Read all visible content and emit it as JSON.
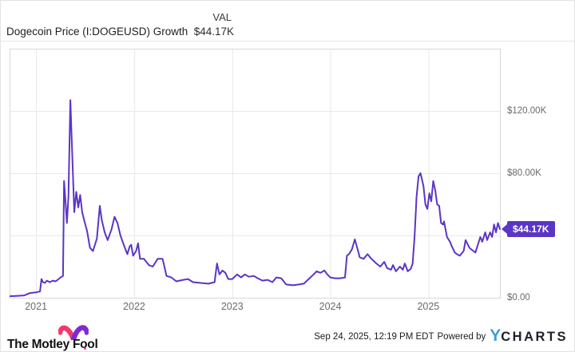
{
  "header": {
    "title": "Dogecoin Price (I:DOGEUSD) Growth",
    "value_column_label": "VAL",
    "current_value": "$44.17K"
  },
  "chart_data": {
    "type": "line",
    "title": "Dogecoin Price (I:DOGEUSD) Growth",
    "x_range": [
      2020.73,
      2025.73
    ],
    "y_range": [
      0,
      160
    ],
    "x_gridlines": [
      {
        "value": 2021,
        "label": "2021"
      },
      {
        "value": 2022,
        "label": "2022"
      },
      {
        "value": 2023,
        "label": "2023"
      },
      {
        "value": 2024,
        "label": "2024"
      },
      {
        "value": 2025,
        "label": "2025"
      }
    ],
    "y_gridlines": [
      0,
      40,
      80,
      120
    ],
    "y_axis_labels": [
      {
        "value": 120,
        "label": "$120.00K"
      },
      {
        "value": 80,
        "label": "$80.00K"
      },
      {
        "value": 0,
        "label": "$0.00"
      }
    ],
    "badge": {
      "label": "$44.17K",
      "value": 44.17,
      "color": "#5b35c5"
    },
    "grid_color": "#e9e9e9",
    "border_color": "#d8d8d8",
    "legend": "none",
    "series": [
      {
        "name": "Dogecoin Price (I:DOGEUSD) Growth",
        "color": "#5b35c5",
        "units": "thousand USD",
        "points": [
          [
            2020.73,
            1
          ],
          [
            2020.8,
            1.2
          ],
          [
            2020.88,
            1.5
          ],
          [
            2020.94,
            3
          ],
          [
            2021.0,
            3.5
          ],
          [
            2021.04,
            4
          ],
          [
            2021.055,
            12
          ],
          [
            2021.07,
            10
          ],
          [
            2021.09,
            9.5
          ],
          [
            2021.11,
            11
          ],
          [
            2021.14,
            10
          ],
          [
            2021.17,
            11
          ],
          [
            2021.2,
            10.5
          ],
          [
            2021.23,
            12
          ],
          [
            2021.26,
            13.5
          ],
          [
            2021.275,
            14
          ],
          [
            2021.285,
            75
          ],
          [
            2021.3,
            62
          ],
          [
            2021.315,
            48
          ],
          [
            2021.33,
            65
          ],
          [
            2021.35,
            127
          ],
          [
            2021.37,
            90
          ],
          [
            2021.39,
            55
          ],
          [
            2021.41,
            68
          ],
          [
            2021.43,
            58
          ],
          [
            2021.45,
            66
          ],
          [
            2021.47,
            55
          ],
          [
            2021.49,
            50
          ],
          [
            2021.52,
            43
          ],
          [
            2021.55,
            32
          ],
          [
            2021.58,
            30
          ],
          [
            2021.62,
            38
          ],
          [
            2021.65,
            59
          ],
          [
            2021.67,
            50
          ],
          [
            2021.7,
            42
          ],
          [
            2021.73,
            37
          ],
          [
            2021.77,
            44
          ],
          [
            2021.8,
            52
          ],
          [
            2021.83,
            48
          ],
          [
            2021.86,
            40
          ],
          [
            2021.9,
            33
          ],
          [
            2021.93,
            28
          ],
          [
            2021.955,
            33
          ],
          [
            2021.97,
            34
          ],
          [
            2021.99,
            27
          ],
          [
            2022.02,
            30
          ],
          [
            2022.04,
            35
          ],
          [
            2022.06,
            25
          ],
          [
            2022.1,
            25
          ],
          [
            2022.15,
            21
          ],
          [
            2022.19,
            20
          ],
          [
            2022.24,
            25
          ],
          [
            2022.29,
            25
          ],
          [
            2022.33,
            14
          ],
          [
            2022.38,
            13
          ],
          [
            2022.43,
            10.5
          ],
          [
            2022.5,
            11.5
          ],
          [
            2022.55,
            12
          ],
          [
            2022.6,
            10
          ],
          [
            2022.68,
            9.5
          ],
          [
            2022.76,
            9
          ],
          [
            2022.82,
            10
          ],
          [
            2022.845,
            22
          ],
          [
            2022.87,
            15
          ],
          [
            2022.9,
            17.5
          ],
          [
            2022.93,
            16
          ],
          [
            2022.96,
            12
          ],
          [
            2023.0,
            12
          ],
          [
            2023.05,
            15
          ],
          [
            2023.09,
            13
          ],
          [
            2023.13,
            15
          ],
          [
            2023.17,
            13.5
          ],
          [
            2023.22,
            14
          ],
          [
            2023.26,
            12.5
          ],
          [
            2023.31,
            11
          ],
          [
            2023.36,
            11.5
          ],
          [
            2023.41,
            10
          ],
          [
            2023.45,
            13
          ],
          [
            2023.5,
            12.5
          ],
          [
            2023.55,
            8.5
          ],
          [
            2023.62,
            8
          ],
          [
            2023.68,
            8.5
          ],
          [
            2023.73,
            9
          ],
          [
            2023.78,
            12
          ],
          [
            2023.83,
            15
          ],
          [
            2023.86,
            17
          ],
          [
            2023.9,
            16
          ],
          [
            2023.94,
            17.5
          ],
          [
            2023.97,
            15
          ],
          [
            2024.0,
            13
          ],
          [
            2024.05,
            12.5
          ],
          [
            2024.1,
            12.5
          ],
          [
            2024.15,
            13
          ],
          [
            2024.17,
            27
          ],
          [
            2024.19,
            28
          ],
          [
            2024.22,
            31
          ],
          [
            2024.25,
            37.5
          ],
          [
            2024.28,
            31
          ],
          [
            2024.3,
            26
          ],
          [
            2024.34,
            25
          ],
          [
            2024.38,
            28
          ],
          [
            2024.42,
            25
          ],
          [
            2024.47,
            22
          ],
          [
            2024.51,
            20
          ],
          [
            2024.55,
            23
          ],
          [
            2024.58,
            19
          ],
          [
            2024.62,
            18
          ],
          [
            2024.64,
            21
          ],
          [
            2024.67,
            17
          ],
          [
            2024.71,
            20
          ],
          [
            2024.74,
            18
          ],
          [
            2024.76,
            22
          ],
          [
            2024.79,
            17
          ],
          [
            2024.82,
            18.5
          ],
          [
            2024.84,
            22
          ],
          [
            2024.86,
            40
          ],
          [
            2024.88,
            65
          ],
          [
            2024.9,
            78
          ],
          [
            2024.92,
            80
          ],
          [
            2024.95,
            72
          ],
          [
            2024.97,
            60
          ],
          [
            2024.99,
            57
          ],
          [
            2025.01,
            67
          ],
          [
            2025.03,
            62
          ],
          [
            2025.05,
            75
          ],
          [
            2025.07,
            69
          ],
          [
            2025.09,
            60
          ],
          [
            2025.11,
            59
          ],
          [
            2025.13,
            48
          ],
          [
            2025.15,
            47
          ],
          [
            2025.16,
            49
          ],
          [
            2025.19,
            39
          ],
          [
            2025.22,
            36
          ],
          [
            2025.24,
            33
          ],
          [
            2025.27,
            29
          ],
          [
            2025.29,
            28
          ],
          [
            2025.32,
            27
          ],
          [
            2025.36,
            30
          ],
          [
            2025.38,
            37
          ],
          [
            2025.42,
            32
          ],
          [
            2025.44,
            31
          ],
          [
            2025.48,
            29
          ],
          [
            2025.53,
            39
          ],
          [
            2025.55,
            36
          ],
          [
            2025.58,
            42
          ],
          [
            2025.6,
            37
          ],
          [
            2025.63,
            42
          ],
          [
            2025.65,
            39
          ],
          [
            2025.67,
            47
          ],
          [
            2025.69,
            42
          ],
          [
            2025.71,
            48
          ],
          [
            2025.73,
            44.17
          ]
        ]
      }
    ]
  },
  "footer": {
    "brand": "The Motley Fool",
    "timestamp": "Sep 24, 2025, 12:19 PM EDT",
    "powered_by": "Powered by",
    "ycharts_y": "Y",
    "ycharts_rest": "CHARTS"
  },
  "colors": {
    "line": "#5b35c5",
    "badge": "#5b35c5",
    "ycharts_blue": "#3d9fd9",
    "motley_pink": "#f03a6e",
    "motley_purple": "#7d2bd0"
  }
}
